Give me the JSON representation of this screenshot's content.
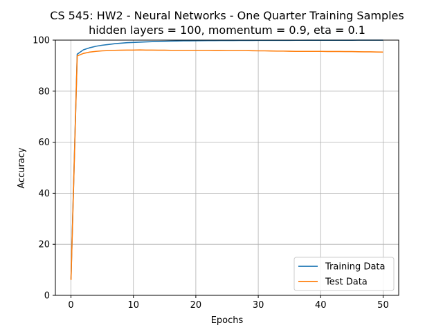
{
  "chart_data": {
    "type": "line",
    "title": "CS 545: HW2 - Neural Networks - One Quarter Training Samples",
    "subtitle": "hidden layers = 100, momentum = 0.9, eta = 0.1",
    "xlabel": "Epochs",
    "ylabel": "Accuracy",
    "xlim": [
      -2.5,
      52.5
    ],
    "ylim": [
      0,
      100
    ],
    "xticks": [
      0,
      10,
      20,
      30,
      40,
      50
    ],
    "yticks": [
      0,
      20,
      40,
      60,
      80,
      100
    ],
    "grid": true,
    "legend_position": "bottom-right",
    "x": [
      0,
      1,
      2,
      3,
      4,
      5,
      6,
      7,
      8,
      9,
      10,
      11,
      12,
      13,
      14,
      15,
      16,
      17,
      18,
      19,
      20,
      21,
      22,
      23,
      24,
      25,
      26,
      27,
      28,
      29,
      30,
      31,
      32,
      33,
      34,
      35,
      36,
      37,
      38,
      39,
      40,
      41,
      42,
      43,
      44,
      45,
      46,
      47,
      48,
      49,
      50
    ],
    "series": [
      {
        "name": "Training Data",
        "color": "#1f77b4",
        "values": [
          6.5,
          94.5,
          96.2,
          97.0,
          97.6,
          98.0,
          98.3,
          98.6,
          98.8,
          99.0,
          99.1,
          99.2,
          99.3,
          99.4,
          99.5,
          99.55,
          99.6,
          99.65,
          99.7,
          99.72,
          99.75,
          99.78,
          99.8,
          99.82,
          99.84,
          99.85,
          99.86,
          99.87,
          99.88,
          99.89,
          99.9,
          99.9,
          99.91,
          99.91,
          99.92,
          99.92,
          99.93,
          99.93,
          99.94,
          99.94,
          99.95,
          99.95,
          99.95,
          99.96,
          99.96,
          99.96,
          99.97,
          99.97,
          99.97,
          99.97,
          99.98
        ]
      },
      {
        "name": "Test Data",
        "color": "#ff7f0e",
        "values": [
          6.0,
          93.8,
          94.8,
          95.3,
          95.6,
          95.8,
          95.9,
          96.0,
          96.05,
          96.1,
          96.1,
          96.15,
          96.1,
          96.1,
          96.05,
          96.05,
          96.0,
          96.0,
          96.0,
          96.0,
          96.0,
          96.0,
          96.0,
          95.95,
          95.95,
          95.9,
          95.9,
          95.9,
          95.9,
          95.85,
          95.8,
          95.8,
          95.75,
          95.7,
          95.7,
          95.65,
          95.6,
          95.6,
          95.6,
          95.6,
          95.6,
          95.55,
          95.55,
          95.55,
          95.5,
          95.5,
          95.45,
          95.4,
          95.4,
          95.35,
          95.3
        ]
      }
    ]
  }
}
